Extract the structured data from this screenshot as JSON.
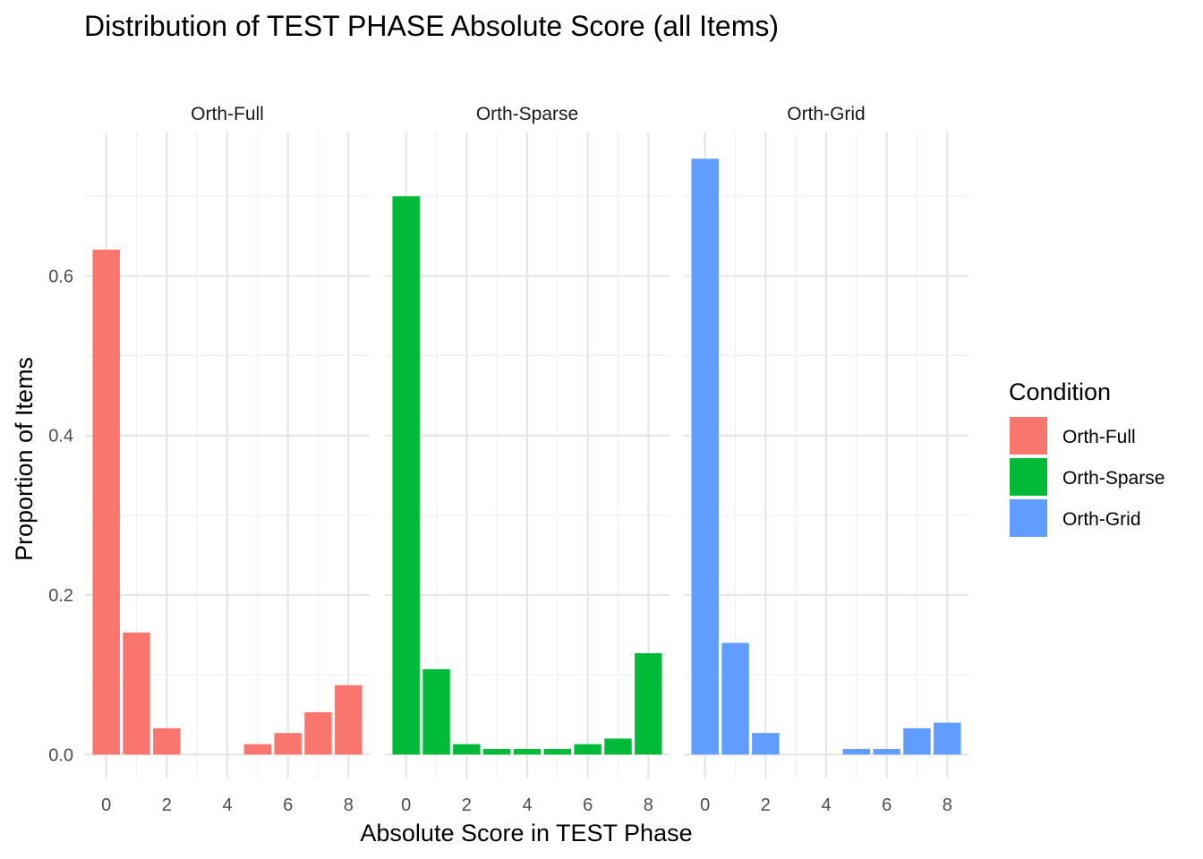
{
  "chart_data": {
    "type": "bar",
    "title": "Distribution of TEST PHASE Absolute Score (all Items)",
    "xlabel": "Absolute Score in TEST Phase",
    "ylabel": "Proportion of Items",
    "xlim": [
      -0.7,
      8.7
    ],
    "ylim": [
      -0.03,
      0.78
    ],
    "x_ticks": [
      0,
      2,
      4,
      6,
      8
    ],
    "y_ticks": [
      0.0,
      0.2,
      0.4,
      0.6
    ],
    "y_tick_labels": [
      "0.0",
      "0.2",
      "0.4",
      "0.6"
    ],
    "grid": true,
    "legend": {
      "title": "Condition",
      "position": "right"
    },
    "x": [
      0,
      1,
      2,
      3,
      4,
      5,
      6,
      7,
      8
    ],
    "series": [
      {
        "name": "Orth-Full",
        "color": "#F8766D",
        "values": [
          0.633,
          0.153,
          0.033,
          0.0,
          0.0,
          0.013,
          0.027,
          0.053,
          0.087
        ]
      },
      {
        "name": "Orth-Sparse",
        "color": "#00BA38",
        "values": [
          0.7,
          0.107,
          0.013,
          0.007,
          0.007,
          0.007,
          0.013,
          0.02,
          0.127
        ]
      },
      {
        "name": "Orth-Grid",
        "color": "#619CFF",
        "values": [
          0.747,
          0.14,
          0.027,
          0.0,
          0.0,
          0.007,
          0.007,
          0.033,
          0.04
        ]
      }
    ]
  }
}
